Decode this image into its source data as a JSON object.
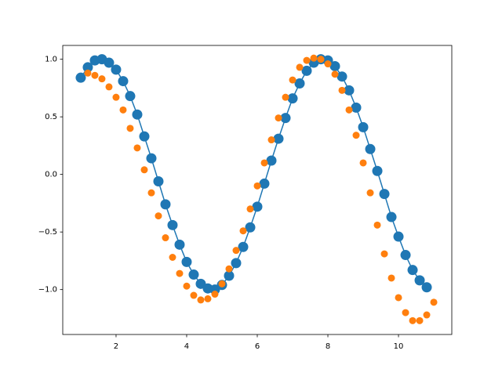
{
  "chart_data": {
    "type": "line",
    "xlim": [
      0.49,
      11.51
    ],
    "ylim": [
      -1.39,
      1.12
    ],
    "xticks": [
      2,
      4,
      6,
      8,
      10
    ],
    "yticks": [
      {
        "value": -1,
        "label": "−1.0"
      },
      {
        "value": -0.5,
        "label": "−0.5"
      },
      {
        "value": 0,
        "label": "0.0"
      },
      {
        "value": 0.5,
        "label": "0.5"
      },
      {
        "value": 1,
        "label": "1.0"
      }
    ],
    "series": [
      {
        "color": "#1f77b4",
        "line": true,
        "marker_radius": 6.5,
        "x": [
          1.0,
          1.2,
          1.4,
          1.6,
          1.8,
          2.0,
          2.2,
          2.4,
          2.6,
          2.8,
          3.0,
          3.2,
          3.4,
          3.6,
          3.8,
          4.0,
          4.2,
          4.4,
          4.6,
          4.8,
          5.0,
          5.2,
          5.4,
          5.6,
          5.8,
          6.0,
          6.2,
          6.4,
          6.6,
          6.8,
          7.0,
          7.2,
          7.4,
          7.6,
          7.8,
          8.0,
          8.2,
          8.4,
          8.6,
          8.8,
          9.0,
          9.2,
          9.4,
          9.6,
          9.8,
          10.0,
          10.2,
          10.4,
          10.6,
          10.8
        ],
        "values": [
          0.84,
          0.93,
          0.99,
          1.0,
          0.97,
          0.91,
          0.81,
          0.68,
          0.52,
          0.33,
          0.14,
          -0.06,
          -0.26,
          -0.44,
          -0.61,
          -0.76,
          -0.87,
          -0.95,
          -0.99,
          -1.0,
          -0.96,
          -0.88,
          -0.77,
          -0.63,
          -0.46,
          -0.28,
          -0.08,
          0.12,
          0.31,
          0.49,
          0.66,
          0.79,
          0.9,
          0.97,
          1.0,
          0.99,
          0.94,
          0.85,
          0.73,
          0.58,
          0.41,
          0.22,
          0.03,
          -0.17,
          -0.37,
          -0.54,
          -0.7,
          -0.83,
          -0.92,
          -0.98
        ]
      },
      {
        "color": "#ff7f0e",
        "line": false,
        "marker_radius": 4.5,
        "x": [
          1.2,
          1.4,
          1.6,
          1.8,
          2.0,
          2.2,
          2.4,
          2.6,
          2.8,
          3.0,
          3.2,
          3.4,
          3.6,
          3.8,
          4.0,
          4.2,
          4.4,
          4.6,
          4.8,
          5.0,
          5.2,
          5.4,
          5.6,
          5.8,
          6.0,
          6.2,
          6.4,
          6.6,
          6.8,
          7.0,
          7.2,
          7.4,
          7.6,
          7.8,
          8.0,
          8.2,
          8.4,
          8.6,
          8.8,
          9.0,
          9.2,
          9.4,
          9.6,
          9.8,
          10.0,
          10.2,
          10.4,
          10.6,
          10.8,
          11.0
        ],
        "values": [
          0.88,
          0.86,
          0.83,
          0.76,
          0.67,
          0.56,
          0.4,
          0.23,
          0.04,
          -0.16,
          -0.36,
          -0.55,
          -0.72,
          -0.86,
          -0.97,
          -1.05,
          -1.09,
          -1.08,
          -1.04,
          -0.95,
          -0.82,
          -0.66,
          -0.49,
          -0.3,
          -0.1,
          0.1,
          0.3,
          0.49,
          0.67,
          0.82,
          0.93,
          0.99,
          1.01,
          1.0,
          0.96,
          0.87,
          0.73,
          0.56,
          0.34,
          0.1,
          -0.16,
          -0.44,
          -0.69,
          -0.9,
          -1.07,
          -1.2,
          -1.27,
          -1.27,
          -1.22,
          -1.11
        ]
      }
    ]
  }
}
